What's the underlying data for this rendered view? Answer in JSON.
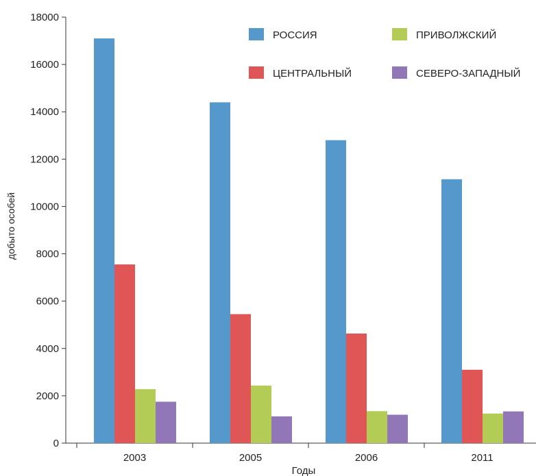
{
  "chart_data": {
    "type": "bar",
    "title": "",
    "xlabel": "Годы",
    "ylabel": "добыто особей",
    "ylim": [
      0,
      18000
    ],
    "yticks": [
      0,
      2000,
      4000,
      6000,
      8000,
      10000,
      12000,
      14000,
      16000,
      18000
    ],
    "categories": [
      "2003",
      "2005",
      "2006",
      "2011"
    ],
    "grid": false,
    "legend_position": "top-right",
    "series": [
      {
        "name": "РОССИЯ",
        "color": "#5599cc",
        "values": [
          17100,
          14400,
          12800,
          11150
        ]
      },
      {
        "name": "ЦЕНТРАЛЬНЫЙ",
        "color": "#e05555",
        "values": [
          7550,
          5450,
          4630,
          3100
        ]
      },
      {
        "name": "ПРИВОЛЖСКИЙ",
        "color": "#b3cc55",
        "values": [
          2280,
          2430,
          1350,
          1250
        ]
      },
      {
        "name": "СЕВЕРО-ЗАПАДНЫЙ",
        "color": "#9177b8",
        "values": [
          1750,
          1130,
          1200,
          1340
        ]
      }
    ]
  }
}
